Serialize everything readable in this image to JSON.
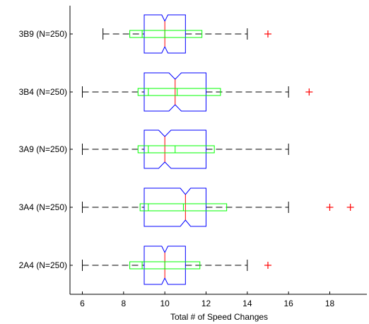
{
  "chart_data": {
    "type": "boxplot",
    "orientation": "horizontal",
    "notched": true,
    "title": "",
    "xlabel": "Total # of Speed Changes",
    "ylabel": "",
    "xlim": [
      5.4,
      19.8
    ],
    "xticks": [
      "6",
      "8",
      "10",
      "12",
      "14",
      "16",
      "18"
    ],
    "grid": false,
    "colors": {
      "box": "#0000ff",
      "median": "#ff0000",
      "whisker": "#000000",
      "outlier": "#ff0000",
      "inner_box": "#00ff00"
    },
    "groups": [
      {
        "label": "3B9 (N=250)",
        "whisker_low": 7,
        "q1": 9,
        "median": 10,
        "q3": 11,
        "whisker_high": 14,
        "notch_low": 9.85,
        "notch_high": 10.15,
        "outliers": [
          15
        ],
        "inner_box": [
          8.3,
          11.8
        ],
        "inner_median": 10,
        "inner_tick": 8.9
      },
      {
        "label": "3B4 (N=250)",
        "whisker_low": 6,
        "q1": 9,
        "median": 10.5,
        "q3": 12,
        "whisker_high": 16,
        "notch_low": 10.2,
        "notch_high": 10.8,
        "outliers": [
          17
        ],
        "inner_box": [
          8.7,
          12.7
        ],
        "inner_median": 10.6,
        "inner_tick": 9.2
      },
      {
        "label": "3A9 (N=250)",
        "whisker_low": 6,
        "q1": 9,
        "median": 10,
        "q3": 12,
        "whisker_high": 16,
        "notch_low": 9.7,
        "notch_high": 10.3,
        "outliers": [],
        "inner_box": [
          8.7,
          12.4
        ],
        "inner_median": 10.5,
        "inner_tick": 9.2
      },
      {
        "label": "3A4 (N=250)",
        "whisker_low": 6,
        "q1": 9,
        "median": 11,
        "q3": 12,
        "whisker_high": 16,
        "notch_low": 10.75,
        "notch_high": 11.25,
        "outliers": [
          18,
          19
        ],
        "inner_box": [
          8.8,
          13.0
        ],
        "inner_median": 10.9,
        "inner_tick": 9.2
      },
      {
        "label": "2A4 (N=250)",
        "whisker_low": 6,
        "q1": 9,
        "median": 10,
        "q3": 11,
        "whisker_high": 14,
        "notch_low": 9.85,
        "notch_high": 10.15,
        "outliers": [
          15
        ],
        "inner_box": [
          8.3,
          11.7
        ],
        "inner_median": 10,
        "inner_tick": 8.9
      }
    ]
  }
}
